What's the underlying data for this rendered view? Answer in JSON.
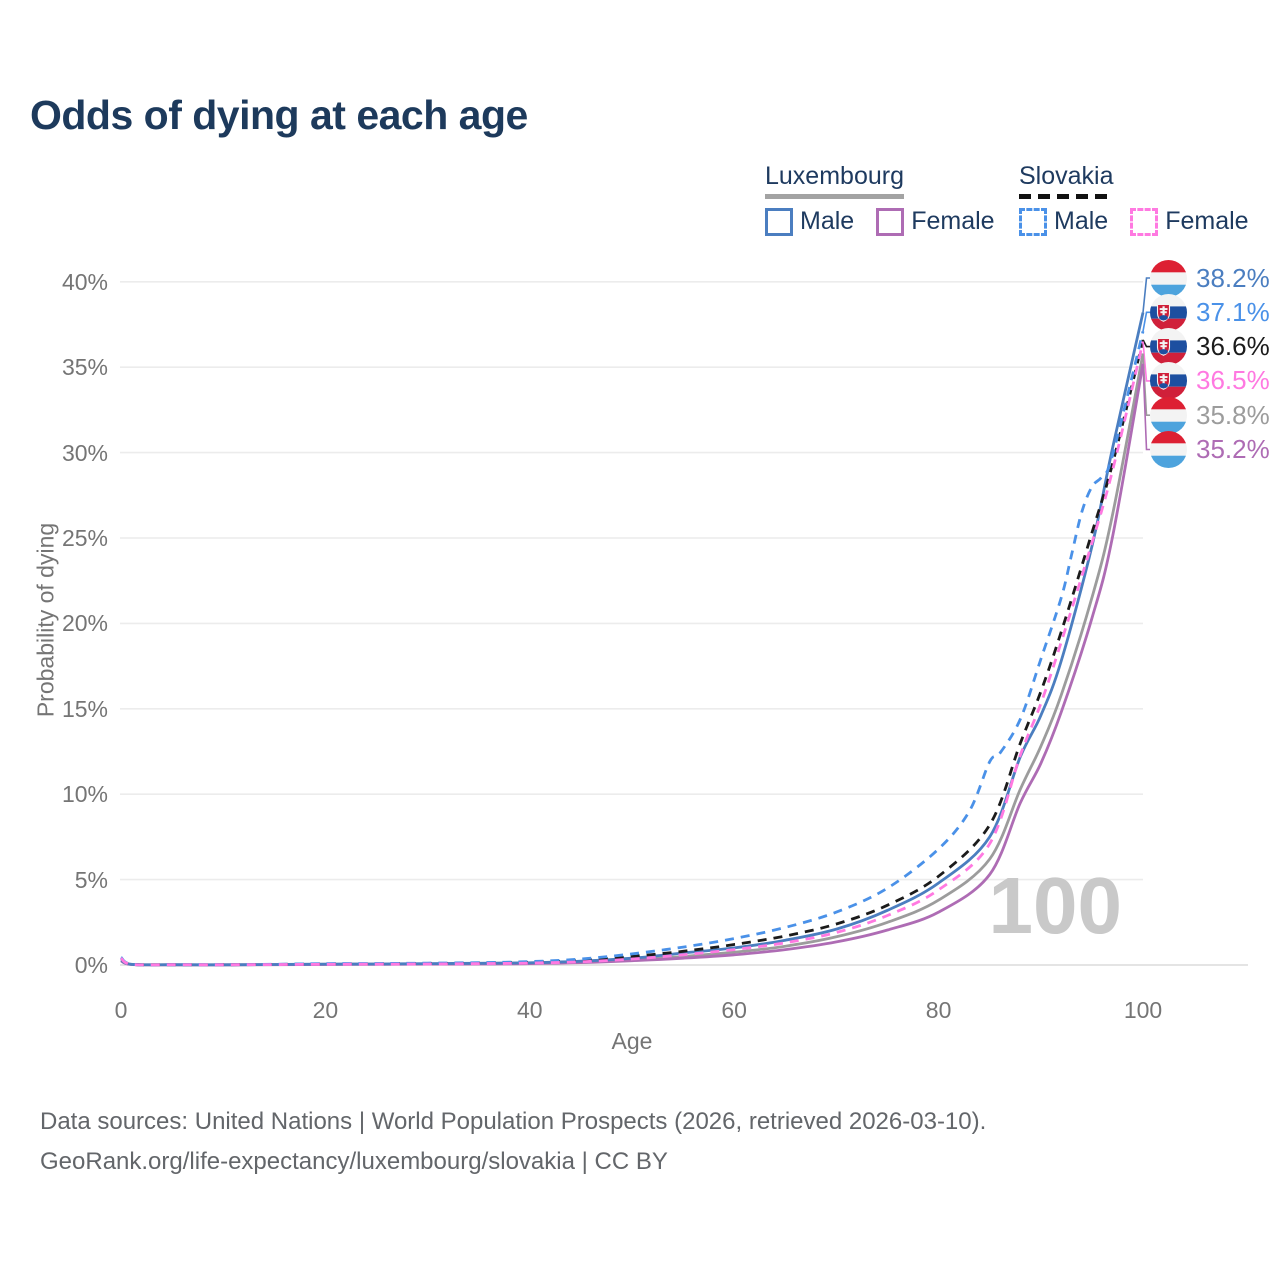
{
  "title": "Odds of dying at each age",
  "watermark": "100",
  "legend": {
    "groups": [
      {
        "id": "luxembourg",
        "label": "Luxembourg",
        "line_style": "solid",
        "underline_color": "#a3a3a3",
        "items": [
          {
            "label": "Male",
            "color": "#4b7ec0"
          },
          {
            "label": "Female",
            "color": "#ae6cb4"
          }
        ]
      },
      {
        "id": "slovakia",
        "label": "Slovakia",
        "line_style": "dashed",
        "underline_color": "#111111",
        "items": [
          {
            "label": "Male",
            "color": "#4a91e8"
          },
          {
            "label": "Female",
            "color": "#ff79e1"
          }
        ]
      }
    ]
  },
  "footer": {
    "line1": "Data sources: United Nations | World Population Prospects (2026, retrieved 2026-03-10).",
    "line2": "GeoRank.org/life-expectancy/luxembourg/slovakia | CC BY"
  },
  "chart_data": {
    "type": "line",
    "title": "Odds of dying at each age",
    "xlabel": "Age",
    "ylabel": "Probability of dying",
    "xlim": [
      0,
      100
    ],
    "ylim": [
      0,
      40
    ],
    "x_ticks": [
      0,
      20,
      40,
      60,
      80,
      100
    ],
    "y_ticks": [
      "0%",
      "5%",
      "10%",
      "15%",
      "20%",
      "25%",
      "30%",
      "35%",
      "40%"
    ],
    "grid": "horizontal",
    "grid_color": "#ececec",
    "series": [
      {
        "id": "lux-total",
        "name": "Luxembourg Total",
        "country": "Luxembourg",
        "sex": "total",
        "color": "#9c9c9c",
        "dashed": false,
        "end_value_pct": 35.8,
        "points": [
          [
            0,
            0.27
          ],
          [
            1,
            0.035
          ],
          [
            5,
            0.012
          ],
          [
            10,
            0.01
          ],
          [
            15,
            0.025
          ],
          [
            20,
            0.04
          ],
          [
            25,
            0.05
          ],
          [
            30,
            0.06
          ],
          [
            35,
            0.08
          ],
          [
            40,
            0.1
          ],
          [
            45,
            0.17
          ],
          [
            50,
            0.3
          ],
          [
            55,
            0.5
          ],
          [
            60,
            0.75
          ],
          [
            65,
            1.1
          ],
          [
            70,
            1.65
          ],
          [
            75,
            2.5
          ],
          [
            80,
            3.8
          ],
          [
            85,
            6.2
          ],
          [
            88,
            10.3
          ],
          [
            90,
            12.8
          ],
          [
            92,
            15.8
          ],
          [
            95,
            21.5
          ],
          [
            97,
            26.3
          ],
          [
            100,
            35.8
          ]
        ]
      },
      {
        "id": "lux-female",
        "name": "Luxembourg Female",
        "country": "Luxembourg",
        "sex": "female",
        "color": "#ae6cb4",
        "dashed": false,
        "end_value_pct": 35.2,
        "points": [
          [
            0,
            0.24
          ],
          [
            1,
            0.03
          ],
          [
            5,
            0.01
          ],
          [
            10,
            0.009
          ],
          [
            15,
            0.02
          ],
          [
            20,
            0.03
          ],
          [
            25,
            0.04
          ],
          [
            30,
            0.05
          ],
          [
            35,
            0.06
          ],
          [
            40,
            0.08
          ],
          [
            45,
            0.14
          ],
          [
            50,
            0.25
          ],
          [
            55,
            0.4
          ],
          [
            60,
            0.6
          ],
          [
            65,
            0.9
          ],
          [
            70,
            1.35
          ],
          [
            75,
            2.05
          ],
          [
            80,
            3.1
          ],
          [
            85,
            5.3
          ],
          [
            88,
            9.5
          ],
          [
            90,
            11.8
          ],
          [
            92,
            14.8
          ],
          [
            95,
            20.3
          ],
          [
            97,
            25.0
          ],
          [
            100,
            35.2
          ]
        ]
      },
      {
        "id": "lux-male",
        "name": "Luxembourg Male",
        "country": "Luxembourg",
        "sex": "male",
        "color": "#4b7ec0",
        "dashed": false,
        "end_value_pct": 38.2,
        "points": [
          [
            0,
            0.3
          ],
          [
            1,
            0.04
          ],
          [
            5,
            0.015
          ],
          [
            10,
            0.012
          ],
          [
            15,
            0.03
          ],
          [
            20,
            0.05
          ],
          [
            25,
            0.06
          ],
          [
            30,
            0.08
          ],
          [
            35,
            0.1
          ],
          [
            40,
            0.13
          ],
          [
            45,
            0.22
          ],
          [
            50,
            0.4
          ],
          [
            55,
            0.7
          ],
          [
            60,
            1.0
          ],
          [
            65,
            1.45
          ],
          [
            70,
            2.1
          ],
          [
            75,
            3.2
          ],
          [
            80,
            4.8
          ],
          [
            85,
            7.5
          ],
          [
            88,
            12.2
          ],
          [
            90,
            14.6
          ],
          [
            92,
            17.8
          ],
          [
            95,
            24.5
          ],
          [
            97,
            30.2
          ],
          [
            100,
            38.2
          ]
        ]
      },
      {
        "id": "svk-total",
        "name": "Slovakia Total",
        "country": "Slovakia",
        "sex": "total",
        "color": "#1b1b1b",
        "dashed": true,
        "end_value_pct": 36.6,
        "points": [
          [
            0,
            0.4
          ],
          [
            1,
            0.045
          ],
          [
            5,
            0.018
          ],
          [
            10,
            0.016
          ],
          [
            15,
            0.035
          ],
          [
            20,
            0.06
          ],
          [
            25,
            0.07
          ],
          [
            30,
            0.085
          ],
          [
            35,
            0.11
          ],
          [
            40,
            0.16
          ],
          [
            45,
            0.27
          ],
          [
            50,
            0.5
          ],
          [
            55,
            0.8
          ],
          [
            60,
            1.2
          ],
          [
            65,
            1.7
          ],
          [
            70,
            2.4
          ],
          [
            75,
            3.5
          ],
          [
            80,
            5.2
          ],
          [
            85,
            8.2
          ],
          [
            88,
            13.0
          ],
          [
            90,
            16.0
          ],
          [
            92,
            19.5
          ],
          [
            95,
            25.3
          ],
          [
            97,
            29.3
          ],
          [
            100,
            36.6
          ]
        ]
      },
      {
        "id": "svk-male",
        "name": "Slovakia Male",
        "country": "Slovakia",
        "sex": "male",
        "color": "#4a91e8",
        "dashed": true,
        "end_value_pct": 37.1,
        "points": [
          [
            0,
            0.45
          ],
          [
            1,
            0.05
          ],
          [
            5,
            0.02
          ],
          [
            10,
            0.02
          ],
          [
            15,
            0.04
          ],
          [
            20,
            0.08
          ],
          [
            25,
            0.09
          ],
          [
            30,
            0.11
          ],
          [
            35,
            0.14
          ],
          [
            40,
            0.2
          ],
          [
            45,
            0.35
          ],
          [
            50,
            0.65
          ],
          [
            55,
            1.05
          ],
          [
            60,
            1.55
          ],
          [
            65,
            2.2
          ],
          [
            70,
            3.1
          ],
          [
            75,
            4.5
          ],
          [
            80,
            6.8
          ],
          [
            83,
            9.0
          ],
          [
            85,
            11.9
          ],
          [
            86,
            12.4
          ],
          [
            88,
            14.4
          ],
          [
            90,
            17.9
          ],
          [
            92,
            21.5
          ],
          [
            93,
            24.0
          ],
          [
            94,
            26.5
          ],
          [
            95,
            28.0
          ],
          [
            96,
            28.6
          ],
          [
            97,
            29.8
          ],
          [
            100,
            37.1
          ]
        ]
      },
      {
        "id": "svk-female",
        "name": "Slovakia Female",
        "country": "Slovakia",
        "sex": "female",
        "color": "#ff79e1",
        "dashed": true,
        "end_value_pct": 36.5,
        "points": [
          [
            0,
            0.4
          ],
          [
            1,
            0.04
          ],
          [
            5,
            0.015
          ],
          [
            10,
            0.013
          ],
          [
            15,
            0.025
          ],
          [
            20,
            0.04
          ],
          [
            25,
            0.05
          ],
          [
            30,
            0.06
          ],
          [
            35,
            0.08
          ],
          [
            40,
            0.11
          ],
          [
            45,
            0.19
          ],
          [
            50,
            0.35
          ],
          [
            55,
            0.6
          ],
          [
            60,
            0.9
          ],
          [
            65,
            1.3
          ],
          [
            70,
            1.9
          ],
          [
            75,
            2.9
          ],
          [
            80,
            4.4
          ],
          [
            85,
            7.1
          ],
          [
            88,
            12.3
          ],
          [
            90,
            15.3
          ],
          [
            92,
            18.9
          ],
          [
            95,
            24.7
          ],
          [
            97,
            28.9
          ],
          [
            100,
            36.5
          ]
        ]
      }
    ],
    "end_labels": [
      {
        "country": "Luxembourg",
        "flag": "lu",
        "value": "38.2%",
        "value_pct": 38.2,
        "color": "#4b7ec0"
      },
      {
        "country": "Slovakia",
        "flag": "sk",
        "value": "37.1%",
        "value_pct": 37.1,
        "color": "#4a91e8"
      },
      {
        "country": "Slovakia",
        "flag": "sk",
        "value": "36.6%",
        "value_pct": 36.6,
        "color": "#1b1b1b"
      },
      {
        "country": "Slovakia",
        "flag": "sk",
        "value": "36.5%",
        "value_pct": 36.5,
        "color": "#ff79e1"
      },
      {
        "country": "Luxembourg",
        "flag": "lu",
        "value": "35.8%",
        "value_pct": 35.8,
        "color": "#9c9c9c"
      },
      {
        "country": "Luxembourg",
        "flag": "lu",
        "value": "35.2%",
        "value_pct": 35.2,
        "color": "#ae6cb4"
      }
    ]
  }
}
